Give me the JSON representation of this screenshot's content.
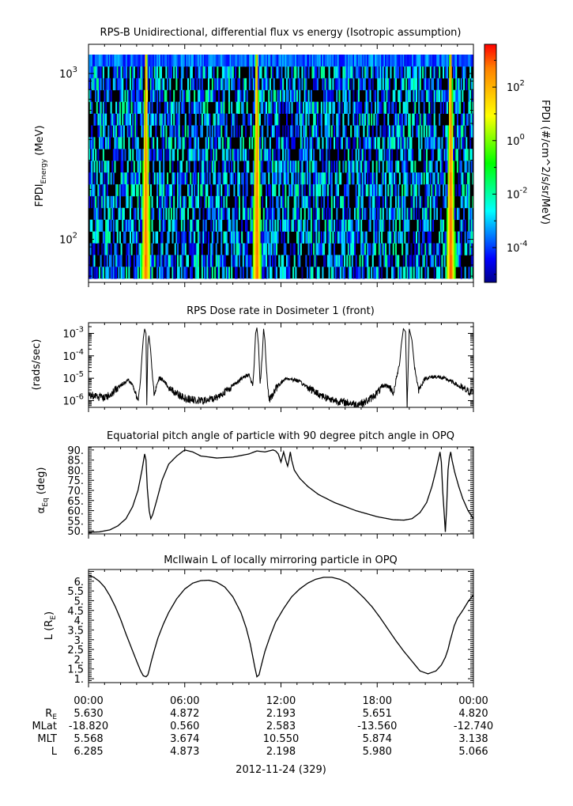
{
  "chart_data": [
    {
      "type": "heatmap",
      "title": "RPS-B  Unidirectional, differential flux vs energy (Isotropic assumption)",
      "ylabel_main": "FPDI",
      "ylabel_sub": "Energy",
      "ylabel_unit": " (MeV)",
      "y_scale": "log",
      "ylim": [
        55,
        1500
      ],
      "y_tick_values": [
        100,
        1000
      ],
      "y_ticks": [
        {
          "base": "10",
          "exp": "2"
        },
        {
          "base": "10",
          "exp": "3"
        }
      ],
      "energy_top_mev": 1300,
      "energy_bottom_mev": 58,
      "energy_channels": 19,
      "time_bins": 300,
      "slot_minutes": [
        0,
        360,
        720,
        1080,
        1440
      ],
      "peak_times_min": [
        215,
        630,
        1355
      ],
      "colorbar": {
        "label": "FPDI (#/cm^2/s/sr/MeV)",
        "scale": "log",
        "range_log10": [
          -5.3,
          3.6
        ],
        "colors": [
          "#00008b",
          "#0000ff",
          "#0080ff",
          "#00ffff",
          "#00ff80",
          "#00ff00",
          "#80ff00",
          "#ffff00",
          "#ffc000",
          "#ff8000",
          "#ff0000"
        ],
        "tick_values": [
          -4,
          -2,
          0,
          2
        ],
        "ticks": [
          {
            "base": "10",
            "exp": "-4"
          },
          {
            "base": "10",
            "exp": "-2"
          },
          {
            "base": "10",
            "exp": "0"
          },
          {
            "base": "10",
            "exp": "2"
          }
        ]
      }
    },
    {
      "type": "line",
      "title": "RPS  Dose rate in Dosimeter 1 (front)",
      "ylabel": "(rads/sec)",
      "y_scale": "log",
      "ylim": [
        5e-07,
        0.003
      ],
      "y_tick_values": [
        1e-06,
        1e-05,
        0.0001,
        0.001
      ],
      "y_ticks": [
        {
          "base": "10",
          "exp": "-6"
        },
        {
          "base": "10",
          "exp": "-5"
        },
        {
          "base": "10",
          "exp": "-4"
        },
        {
          "base": "10",
          "exp": "-3"
        }
      ],
      "x_minutes": [
        0,
        30,
        60,
        90,
        120,
        150,
        170,
        185,
        195,
        200,
        205,
        210,
        215,
        218,
        222,
        226,
        232,
        238,
        245,
        255,
        265,
        280,
        300,
        330,
        360,
        400,
        440,
        480,
        520,
        550,
        570,
        585,
        600,
        608,
        615,
        620,
        625,
        630,
        636,
        642,
        650,
        655,
        660,
        665,
        675,
        690,
        710,
        740,
        780,
        820,
        860,
        900,
        940,
        970,
        1000,
        1030,
        1055,
        1075,
        1090,
        1110,
        1125,
        1135,
        1142,
        1150,
        1158,
        1165,
        1170,
        1178,
        1186,
        1192,
        1200,
        1210,
        1220,
        1235,
        1260,
        1300,
        1340,
        1370,
        1390,
        1410,
        1425,
        1440
      ],
      "y_values": [
        2e-06,
        1.5e-06,
        1.3e-06,
        2.2e-06,
        5e-06,
        8e-06,
        4e-06,
        8e-07,
        1e-05,
        0.0001,
        0.0006,
        0.0016,
        0.001,
        5e-07,
        0.0003,
        0.0008,
        0.0002,
        2e-05,
        2e-06,
        5e-06,
        1e-05,
        8e-06,
        4e-06,
        2e-06,
        1.3e-06,
        1e-06,
        1e-06,
        1.4e-06,
        3e-06,
        6e-06,
        9e-06,
        1.2e-05,
        1.5e-05,
        8e-06,
        5e-06,
        5e-05,
        0.001,
        0.0018,
        0.0003,
        5e-06,
        0.0001,
        0.0016,
        0.0005,
        3e-05,
        1e-06,
        2e-06,
        5e-06,
        1e-05,
        8e-06,
        4e-06,
        2e-06,
        1.2e-06,
        9e-07,
        8e-07,
        7e-07,
        8e-07,
        1.2e-06,
        2e-06,
        3e-06,
        5e-06,
        4e-06,
        3e-06,
        2e-06,
        8e-06,
        2e-05,
        6e-05,
        0.0003,
        0.0016,
        0.0012,
        6e-07,
        0.0016,
        0.0005,
        3e-05,
        3e-06,
        1e-05,
        1.2e-05,
        9e-06,
        6e-06,
        4e-06,
        3e-06,
        2.5e-06,
        2.5e-06
      ]
    },
    {
      "type": "line",
      "title": "Equatorial pitch angle of particle with 90 degree pitch angle in OPQ",
      "ylabel_main": "α",
      "ylabel_sub": "Eq",
      "ylabel_unit": " (deg)",
      "ylim": [
        48.5,
        91.5
      ],
      "y_ticks": [
        50,
        55,
        60,
        65,
        70,
        75,
        80,
        85,
        90
      ],
      "x_minutes": [
        0,
        40,
        80,
        110,
        140,
        165,
        185,
        200,
        210,
        215,
        220,
        227,
        233,
        240,
        255,
        275,
        300,
        330,
        360,
        390,
        420,
        480,
        540,
        600,
        630,
        660,
        690,
        700,
        710,
        715,
        720,
        730,
        740,
        745,
        750,
        755,
        760,
        770,
        790,
        820,
        860,
        920,
        1000,
        1080,
        1140,
        1180,
        1210,
        1240,
        1265,
        1285,
        1300,
        1310,
        1315,
        1320,
        1325,
        1330,
        1335,
        1340,
        1345,
        1350,
        1355,
        1360,
        1370,
        1385,
        1400,
        1420,
        1440
      ],
      "y_values": [
        49.3,
        49.5,
        50.5,
        52.5,
        56,
        62,
        70,
        80,
        88,
        85,
        71,
        60,
        56,
        58,
        65,
        75,
        83,
        87,
        90,
        89,
        87,
        86,
        86.5,
        88,
        89.5,
        89,
        90,
        89.5,
        88,
        86,
        84,
        89,
        84,
        82,
        85,
        89,
        85,
        80,
        76,
        72,
        68,
        64,
        60,
        57,
        55.5,
        55.3,
        56,
        59,
        64,
        72,
        80,
        86,
        89,
        84,
        70,
        60,
        49.5,
        62,
        80,
        86,
        89,
        85,
        79,
        72,
        66,
        60,
        56
      ]
    },
    {
      "type": "line",
      "title": "McIlwain L of locally mirroring particle in OPQ",
      "ylabel_main": "L (R",
      "ylabel_sub": "E",
      "ylabel_unit": ")",
      "ylim": [
        0.8,
        6.6
      ],
      "y_ticks": [
        1,
        1.5,
        2,
        2.5,
        3,
        3.5,
        4,
        4.5,
        5,
        5.5,
        6
      ],
      "x_minutes": [
        0,
        20,
        40,
        60,
        80,
        100,
        120,
        140,
        160,
        180,
        195,
        205,
        215,
        222,
        228,
        235,
        245,
        260,
        280,
        300,
        330,
        360,
        390,
        420,
        450,
        480,
        510,
        540,
        570,
        590,
        605,
        615,
        622,
        630,
        638,
        645,
        660,
        680,
        700,
        730,
        760,
        790,
        820,
        850,
        880,
        910,
        940,
        970,
        1000,
        1030,
        1060,
        1090,
        1120,
        1150,
        1180,
        1210,
        1240,
        1270,
        1300,
        1320,
        1335,
        1345,
        1352,
        1360,
        1368,
        1380,
        1400,
        1420,
        1440
      ],
      "y_values": [
        6.3,
        6.2,
        6.0,
        5.7,
        5.25,
        4.7,
        4.05,
        3.3,
        2.6,
        1.9,
        1.4,
        1.15,
        1.1,
        1.2,
        1.5,
        1.9,
        2.4,
        3.1,
        3.8,
        4.4,
        5.1,
        5.6,
        5.9,
        6.03,
        6.05,
        5.95,
        5.7,
        5.2,
        4.4,
        3.6,
        2.8,
        2.1,
        1.6,
        1.1,
        1.2,
        1.6,
        2.4,
        3.2,
        3.9,
        4.6,
        5.2,
        5.6,
        5.9,
        6.1,
        6.2,
        6.2,
        6.1,
        5.9,
        5.55,
        5.15,
        4.7,
        4.15,
        3.55,
        2.95,
        2.4,
        1.9,
        1.4,
        1.25,
        1.4,
        1.7,
        2.1,
        2.5,
        2.9,
        3.3,
        3.7,
        4.1,
        4.5,
        4.95,
        5.3
      ]
    }
  ],
  "footer": {
    "time_ticks": [
      "00:00",
      "06:00",
      "12:00",
      "18:00",
      "00:00"
    ],
    "rows": [
      {
        "label_main": "R",
        "label_sub": "E",
        "values": [
          "5.630",
          "4.872",
          "2.193",
          "5.651",
          "4.820"
        ]
      },
      {
        "label_main": "MLat",
        "label_sub": "",
        "values": [
          "-18.820",
          "0.560",
          "2.583",
          "-13.560",
          "-12.740"
        ]
      },
      {
        "label_main": "MLT",
        "label_sub": "",
        "values": [
          "5.568",
          "3.674",
          "10.550",
          "5.874",
          "3.138"
        ]
      },
      {
        "label_main": "L",
        "label_sub": "",
        "values": [
          "6.285",
          "4.873",
          "2.198",
          "5.980",
          "5.066"
        ]
      }
    ],
    "date": "2012-11-24 (329)"
  }
}
